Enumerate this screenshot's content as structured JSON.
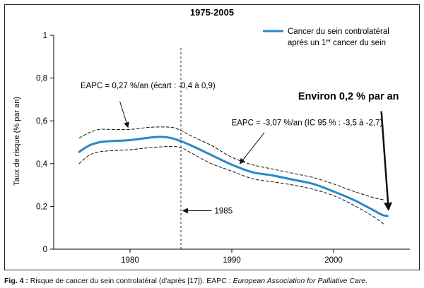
{
  "chart_data": {
    "type": "line",
    "title": "1975-2005",
    "xlabel": "",
    "ylabel": "Taux de risque (% par an)",
    "xlim": [
      1972.5,
      2007.5
    ],
    "ylim": [
      0,
      1
    ],
    "x_ticks": [
      1980,
      1990,
      2000
    ],
    "x_tick_labels": [
      "1980",
      "1990",
      "2000"
    ],
    "y_ticks": [
      0,
      0.2,
      0.4,
      0.6,
      0.8,
      1
    ],
    "y_tick_labels": [
      "0",
      "0,2",
      "0,4",
      "0,6",
      "0,8",
      "1"
    ],
    "grid": false,
    "legend_position": "top-right",
    "series": [
      {
        "name": "Cancer du sein controlatéral après un 1er cancer du sein",
        "color": "#2b86c8",
        "style": "solid",
        "x": [
          1975,
          1976,
          1977,
          1978,
          1980,
          1982,
          1983,
          1984,
          1985,
          1986,
          1988,
          1990,
          1992,
          1994,
          1996,
          1998,
          2000,
          2002,
          2004,
          2004.8,
          2005.3
        ],
        "y": [
          0.455,
          0.485,
          0.5,
          0.505,
          0.51,
          0.522,
          0.525,
          0.52,
          0.505,
          0.485,
          0.44,
          0.395,
          0.36,
          0.345,
          0.325,
          0.305,
          0.27,
          0.23,
          0.18,
          0.16,
          0.155
        ]
      },
      {
        "name": "",
        "color": "#111111",
        "style": "dashed",
        "x": [
          1975,
          1976,
          1977,
          1978,
          1980,
          1982,
          1984,
          1985,
          1986,
          1988,
          1990,
          1992,
          1994,
          1996,
          1998,
          2000,
          2002,
          2004,
          2005
        ],
        "y": [
          0.52,
          0.545,
          0.56,
          0.56,
          0.56,
          0.57,
          0.57,
          0.555,
          0.53,
          0.485,
          0.43,
          0.395,
          0.375,
          0.355,
          0.335,
          0.305,
          0.27,
          0.24,
          0.23
        ]
      },
      {
        "name": "",
        "color": "#111111",
        "style": "dashed",
        "x": [
          1975,
          1976,
          1977,
          1978,
          1980,
          1982,
          1984,
          1985,
          1986,
          1988,
          1990,
          1992,
          1994,
          1996,
          1998,
          2000,
          2002,
          2004,
          2005
        ],
        "y": [
          0.4,
          0.44,
          0.455,
          0.46,
          0.465,
          0.475,
          0.48,
          0.475,
          0.45,
          0.4,
          0.365,
          0.33,
          0.315,
          0.3,
          0.28,
          0.25,
          0.205,
          0.15,
          0.115
        ]
      }
    ],
    "reference_lines": [
      {
        "axis": "x",
        "value": 1985,
        "style": "dashed"
      }
    ],
    "annotations": [
      {
        "text": "EAPC = 0,27 %/an (écart : -0,4 à 0,9)",
        "x": 1978.4,
        "y": 0.74,
        "arrow_to": [
          1979.8,
          0.57
        ]
      },
      {
        "text": "EAPC = -3,07 %/an (IC 95 % : -3,5 à -2,7)",
        "x": 1991.5,
        "y": 0.58,
        "arrow_to": [
          1990.8,
          0.4
        ]
      },
      {
        "text": "1985",
        "x": 1988.3,
        "y": 0.18,
        "arrow_to": [
          1985.2,
          0.18
        ]
      },
      {
        "text": "Environ 0,2 % par an",
        "x": 2001.8,
        "y": 0.7,
        "arrow_to": [
          2005.4,
          0.185
        ],
        "bold": true
      }
    ]
  },
  "caption": {
    "label": "Fig. 4 :",
    "text": " Risque de cancer du sein controlatéral (d'après [17]). EAPC : ",
    "italic": "European Association for Palliative Care",
    "end": "."
  },
  "legend": {
    "line1": "Cancer du sein controlatéral",
    "line2_prefix": "après un 1",
    "line2_sup": "er",
    "line2_suffix": " cancer du sein"
  }
}
